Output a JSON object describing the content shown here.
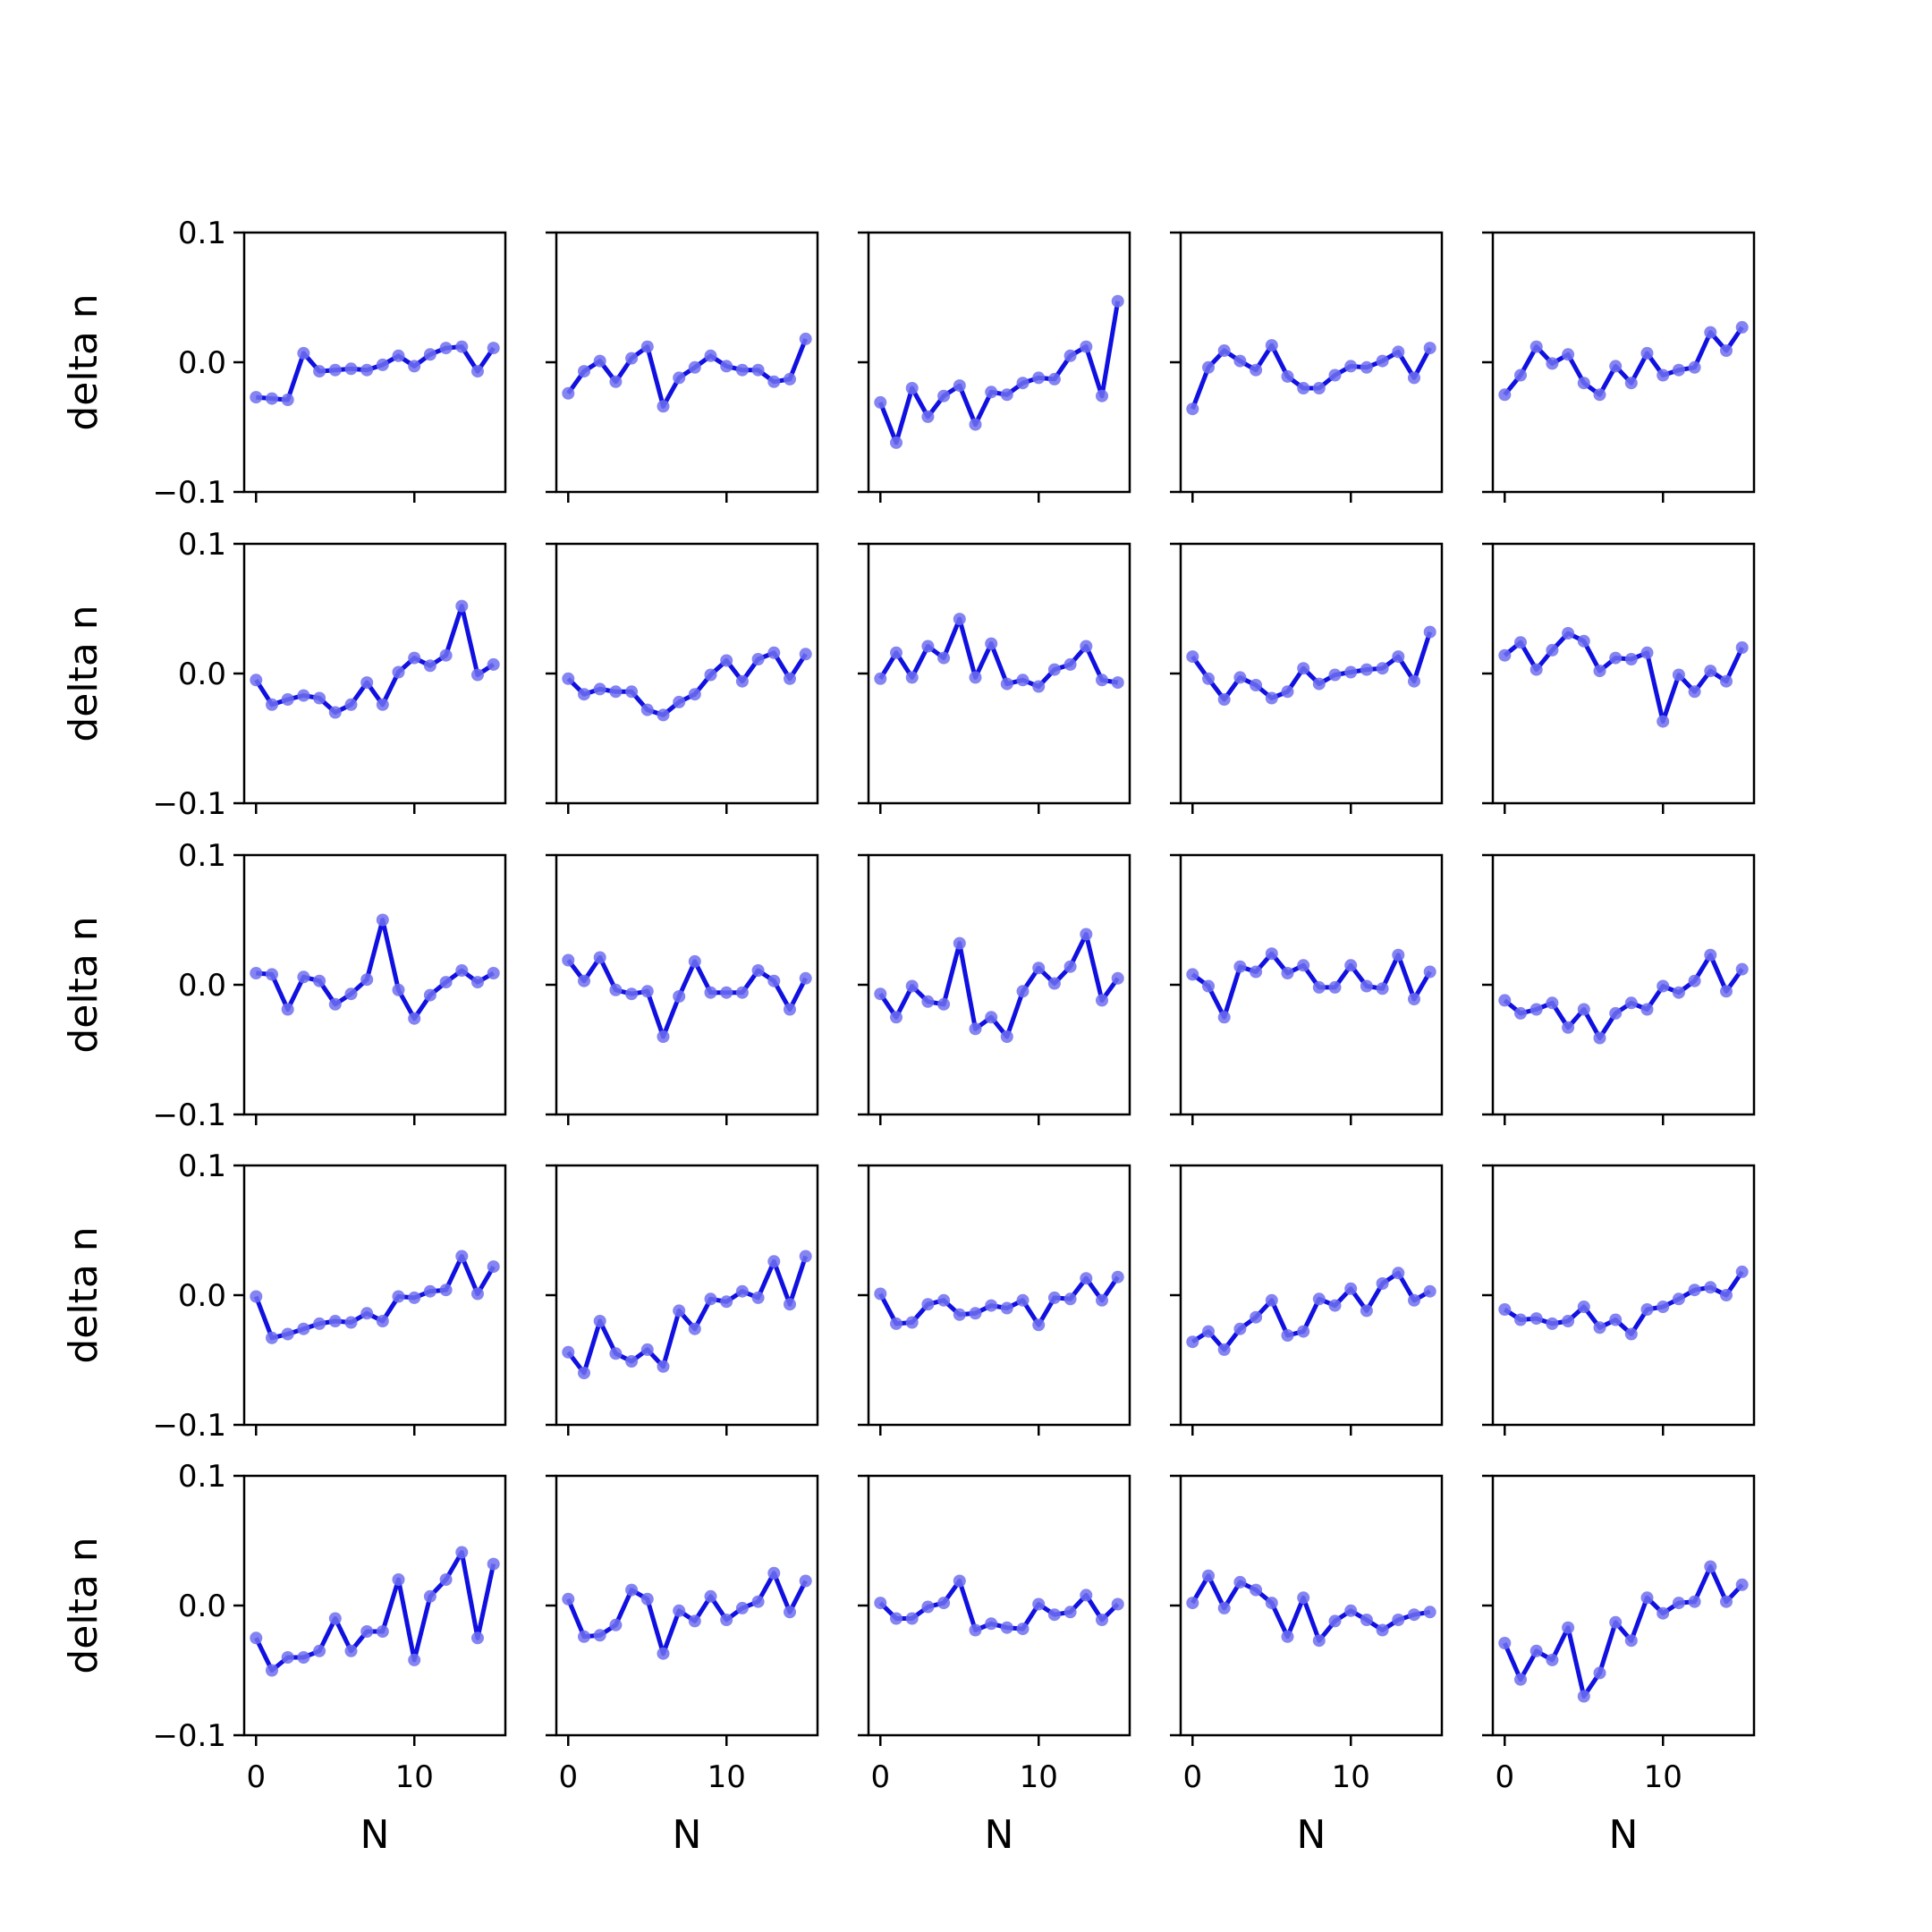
{
  "figure": {
    "rows": 5,
    "cols": 5,
    "line_color": "#1010e0",
    "marker_color": "#6e6ef0",
    "background": "#ffffff"
  },
  "axes_common": {
    "xlabel": "N",
    "ylabel": "delta n",
    "xlim": [
      -0.75,
      15.75
    ],
    "ylim": [
      -0.1,
      0.1
    ],
    "xticks": [
      0,
      10
    ],
    "xtick_labels": [
      "0",
      "10"
    ],
    "yticks": [
      -0.1,
      0.0,
      0.1
    ],
    "ytick_labels": [
      "−0.1",
      "0.0",
      "0.1"
    ],
    "grid": false,
    "legend": "none"
  },
  "chart_data": [
    {
      "type": "line",
      "x": [
        0,
        1,
        2,
        3,
        4,
        5,
        6,
        7,
        8,
        9,
        10,
        11,
        12,
        13,
        14,
        15
      ],
      "y": [
        -0.027,
        -0.028,
        -0.029,
        0.007,
        -0.007,
        -0.006,
        -0.005,
        -0.006,
        -0.002,
        0.005,
        -0.003,
        0.006,
        0.011,
        0.012,
        -0.007,
        0.011
      ]
    },
    {
      "type": "line",
      "x": [
        0,
        1,
        2,
        3,
        4,
        5,
        6,
        7,
        8,
        9,
        10,
        11,
        12,
        13,
        14,
        15
      ],
      "y": [
        -0.024,
        -0.007,
        0.001,
        -0.015,
        0.003,
        0.012,
        -0.034,
        -0.012,
        -0.004,
        0.005,
        -0.003,
        -0.006,
        -0.006,
        -0.015,
        -0.013,
        0.018
      ]
    },
    {
      "type": "line",
      "x": [
        0,
        1,
        2,
        3,
        4,
        5,
        6,
        7,
        8,
        9,
        10,
        11,
        12,
        13,
        14,
        15
      ],
      "y": [
        -0.031,
        -0.062,
        -0.02,
        -0.042,
        -0.026,
        -0.018,
        -0.048,
        -0.023,
        -0.025,
        -0.016,
        -0.012,
        -0.013,
        0.005,
        0.012,
        -0.026,
        0.047
      ]
    },
    {
      "type": "line",
      "x": [
        0,
        1,
        2,
        3,
        4,
        5,
        6,
        7,
        8,
        9,
        10,
        11,
        12,
        13,
        14,
        15
      ],
      "y": [
        -0.036,
        -0.004,
        0.009,
        0.001,
        -0.006,
        0.013,
        -0.011,
        -0.02,
        -0.02,
        -0.01,
        -0.003,
        -0.004,
        0.001,
        0.008,
        -0.012,
        0.011
      ]
    },
    {
      "type": "line",
      "x": [
        0,
        1,
        2,
        3,
        4,
        5,
        6,
        7,
        8,
        9,
        10,
        11,
        12,
        13,
        14,
        15
      ],
      "y": [
        -0.025,
        -0.01,
        0.012,
        -0.001,
        0.006,
        -0.016,
        -0.025,
        -0.003,
        -0.016,
        0.007,
        -0.01,
        -0.006,
        -0.004,
        0.023,
        0.009,
        0.027
      ]
    },
    {
      "type": "line",
      "x": [
        0,
        1,
        2,
        3,
        4,
        5,
        6,
        7,
        8,
        9,
        10,
        11,
        12,
        13,
        14,
        15
      ],
      "y": [
        -0.005,
        -0.024,
        -0.02,
        -0.017,
        -0.019,
        -0.03,
        -0.024,
        -0.007,
        -0.024,
        0.001,
        0.012,
        0.006,
        0.014,
        0.052,
        -0.001,
        0.007
      ]
    },
    {
      "type": "line",
      "x": [
        0,
        1,
        2,
        3,
        4,
        5,
        6,
        7,
        8,
        9,
        10,
        11,
        12,
        13,
        14,
        15
      ],
      "y": [
        -0.004,
        -0.016,
        -0.012,
        -0.014,
        -0.014,
        -0.028,
        -0.032,
        -0.022,
        -0.016,
        -0.001,
        0.01,
        -0.006,
        0.011,
        0.016,
        -0.004,
        0.015
      ]
    },
    {
      "type": "line",
      "x": [
        0,
        1,
        2,
        3,
        4,
        5,
        6,
        7,
        8,
        9,
        10,
        11,
        12,
        13,
        14,
        15
      ],
      "y": [
        -0.004,
        0.016,
        -0.003,
        0.021,
        0.012,
        0.042,
        -0.003,
        0.023,
        -0.008,
        -0.005,
        -0.01,
        0.003,
        0.007,
        0.021,
        -0.005,
        -0.007
      ]
    },
    {
      "type": "line",
      "x": [
        0,
        1,
        2,
        3,
        4,
        5,
        6,
        7,
        8,
        9,
        10,
        11,
        12,
        13,
        14,
        15
      ],
      "y": [
        0.013,
        -0.004,
        -0.02,
        -0.003,
        -0.009,
        -0.019,
        -0.014,
        0.004,
        -0.008,
        -0.001,
        0.001,
        0.003,
        0.004,
        0.013,
        -0.006,
        0.032
      ]
    },
    {
      "type": "line",
      "x": [
        0,
        1,
        2,
        3,
        4,
        5,
        6,
        7,
        8,
        9,
        10,
        11,
        12,
        13,
        14,
        15
      ],
      "y": [
        0.014,
        0.024,
        0.003,
        0.018,
        0.031,
        0.025,
        0.002,
        0.012,
        0.011,
        0.016,
        -0.037,
        -0.001,
        -0.014,
        0.002,
        -0.006,
        0.02
      ]
    },
    {
      "type": "line",
      "x": [
        0,
        1,
        2,
        3,
        4,
        5,
        6,
        7,
        8,
        9,
        10,
        11,
        12,
        13,
        14,
        15
      ],
      "y": [
        0.009,
        0.008,
        -0.019,
        0.006,
        0.003,
        -0.015,
        -0.007,
        0.004,
        0.05,
        -0.004,
        -0.026,
        -0.008,
        0.002,
        0.011,
        0.002,
        0.009
      ]
    },
    {
      "type": "line",
      "x": [
        0,
        1,
        2,
        3,
        4,
        5,
        6,
        7,
        8,
        9,
        10,
        11,
        12,
        13,
        14,
        15
      ],
      "y": [
        0.019,
        0.003,
        0.021,
        -0.004,
        -0.007,
        -0.005,
        -0.04,
        -0.009,
        0.018,
        -0.006,
        -0.006,
        -0.006,
        0.011,
        0.003,
        -0.019,
        0.005
      ]
    },
    {
      "type": "line",
      "x": [
        0,
        1,
        2,
        3,
        4,
        5,
        6,
        7,
        8,
        9,
        10,
        11,
        12,
        13,
        14,
        15
      ],
      "y": [
        -0.007,
        -0.025,
        -0.001,
        -0.013,
        -0.015,
        0.032,
        -0.034,
        -0.025,
        -0.04,
        -0.005,
        0.013,
        0.001,
        0.014,
        0.039,
        -0.012,
        0.005
      ]
    },
    {
      "type": "line",
      "x": [
        0,
        1,
        2,
        3,
        4,
        5,
        6,
        7,
        8,
        9,
        10,
        11,
        12,
        13,
        14,
        15
      ],
      "y": [
        0.008,
        -0.001,
        -0.025,
        0.014,
        0.01,
        0.024,
        0.009,
        0.015,
        -0.002,
        -0.002,
        0.015,
        -0.001,
        -0.003,
        0.023,
        -0.011,
        0.01
      ]
    },
    {
      "type": "line",
      "x": [
        0,
        1,
        2,
        3,
        4,
        5,
        6,
        7,
        8,
        9,
        10,
        11,
        12,
        13,
        14,
        15
      ],
      "y": [
        -0.012,
        -0.022,
        -0.019,
        -0.014,
        -0.033,
        -0.019,
        -0.041,
        -0.022,
        -0.014,
        -0.019,
        -0.001,
        -0.006,
        0.003,
        0.023,
        -0.005,
        0.012
      ]
    },
    {
      "type": "line",
      "x": [
        0,
        1,
        2,
        3,
        4,
        5,
        6,
        7,
        8,
        9,
        10,
        11,
        12,
        13,
        14,
        15
      ],
      "y": [
        -0.001,
        -0.033,
        -0.03,
        -0.026,
        -0.022,
        -0.02,
        -0.021,
        -0.014,
        -0.02,
        -0.001,
        -0.002,
        0.003,
        0.004,
        0.03,
        0.001,
        0.022
      ]
    },
    {
      "type": "line",
      "x": [
        0,
        1,
        2,
        3,
        4,
        5,
        6,
        7,
        8,
        9,
        10,
        11,
        12,
        13,
        14,
        15
      ],
      "y": [
        -0.044,
        -0.06,
        -0.02,
        -0.045,
        -0.051,
        -0.042,
        -0.055,
        -0.012,
        -0.026,
        -0.003,
        -0.005,
        0.003,
        -0.002,
        0.026,
        -0.007,
        0.03
      ]
    },
    {
      "type": "line",
      "x": [
        0,
        1,
        2,
        3,
        4,
        5,
        6,
        7,
        8,
        9,
        10,
        11,
        12,
        13,
        14,
        15
      ],
      "y": [
        0.001,
        -0.022,
        -0.021,
        -0.007,
        -0.004,
        -0.015,
        -0.014,
        -0.008,
        -0.01,
        -0.004,
        -0.023,
        -0.002,
        -0.003,
        0.013,
        -0.004,
        0.014
      ]
    },
    {
      "type": "line",
      "x": [
        0,
        1,
        2,
        3,
        4,
        5,
        6,
        7,
        8,
        9,
        10,
        11,
        12,
        13,
        14,
        15
      ],
      "y": [
        -0.036,
        -0.028,
        -0.042,
        -0.026,
        -0.017,
        -0.004,
        -0.031,
        -0.028,
        -0.003,
        -0.008,
        0.005,
        -0.012,
        0.009,
        0.017,
        -0.004,
        0.003
      ]
    },
    {
      "type": "line",
      "x": [
        0,
        1,
        2,
        3,
        4,
        5,
        6,
        7,
        8,
        9,
        10,
        11,
        12,
        13,
        14,
        15
      ],
      "y": [
        -0.011,
        -0.019,
        -0.018,
        -0.022,
        -0.02,
        -0.009,
        -0.025,
        -0.019,
        -0.03,
        -0.011,
        -0.009,
        -0.003,
        0.004,
        0.006,
        0.0,
        0.018
      ]
    },
    {
      "type": "line",
      "x": [
        0,
        1,
        2,
        3,
        4,
        5,
        6,
        7,
        8,
        9,
        10,
        11,
        12,
        13,
        14,
        15
      ],
      "y": [
        -0.025,
        -0.05,
        -0.04,
        -0.04,
        -0.035,
        -0.01,
        -0.035,
        -0.02,
        -0.02,
        0.02,
        -0.042,
        0.007,
        0.02,
        0.041,
        -0.025,
        0.032
      ]
    },
    {
      "type": "line",
      "x": [
        0,
        1,
        2,
        3,
        4,
        5,
        6,
        7,
        8,
        9,
        10,
        11,
        12,
        13,
        14,
        15
      ],
      "y": [
        0.005,
        -0.024,
        -0.023,
        -0.015,
        0.012,
        0.005,
        -0.037,
        -0.004,
        -0.012,
        0.007,
        -0.011,
        -0.002,
        0.003,
        0.025,
        -0.005,
        0.019
      ]
    },
    {
      "type": "line",
      "x": [
        0,
        1,
        2,
        3,
        4,
        5,
        6,
        7,
        8,
        9,
        10,
        11,
        12,
        13,
        14,
        15
      ],
      "y": [
        0.002,
        -0.01,
        -0.01,
        -0.001,
        0.002,
        0.019,
        -0.019,
        -0.014,
        -0.017,
        -0.018,
        0.001,
        -0.007,
        -0.005,
        0.008,
        -0.011,
        0.001
      ]
    },
    {
      "type": "line",
      "x": [
        0,
        1,
        2,
        3,
        4,
        5,
        6,
        7,
        8,
        9,
        10,
        11,
        12,
        13,
        14,
        15
      ],
      "y": [
        0.002,
        0.023,
        -0.002,
        0.018,
        0.012,
        0.002,
        -0.024,
        0.006,
        -0.027,
        -0.012,
        -0.004,
        -0.011,
        -0.019,
        -0.011,
        -0.007,
        -0.005
      ]
    },
    {
      "type": "line",
      "x": [
        0,
        1,
        2,
        3,
        4,
        5,
        6,
        7,
        8,
        9,
        10,
        11,
        12,
        13,
        14,
        15
      ],
      "y": [
        -0.029,
        -0.057,
        -0.035,
        -0.042,
        -0.017,
        -0.07,
        -0.052,
        -0.013,
        -0.027,
        0.006,
        -0.006,
        0.002,
        0.003,
        0.03,
        0.003,
        0.016
      ]
    }
  ]
}
